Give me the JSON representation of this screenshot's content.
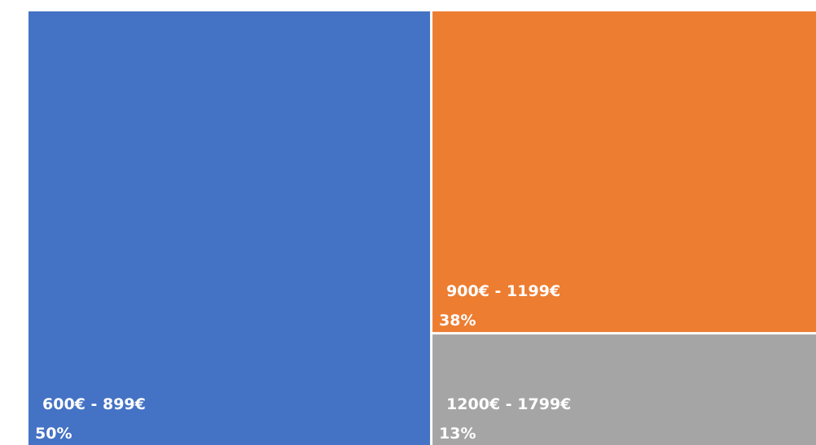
{
  "chart_data": {
    "type": "treemap",
    "categories": [
      "600€ - 899€",
      "900€ - 1199€",
      "1200€ - 1799€"
    ],
    "values": [
      50,
      38,
      13
    ],
    "value_labels": [
      "50%",
      "38%",
      "13%"
    ],
    "colors": [
      "#4472c4",
      "#ed7d31",
      "#a5a5a5"
    ]
  }
}
